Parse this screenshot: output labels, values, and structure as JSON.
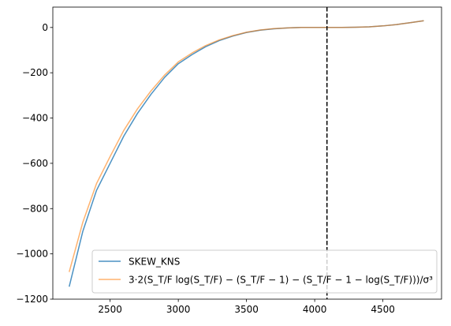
{
  "chart_data": {
    "type": "line",
    "title": "",
    "xlabel": "",
    "ylabel": "",
    "xlim": [
      2080,
      4930
    ],
    "ylim": [
      -1200,
      90
    ],
    "xticks": [
      2500,
      3000,
      3500,
      4000,
      4500
    ],
    "yticks": [
      0,
      -200,
      -400,
      -600,
      -800,
      -1000,
      -1200
    ],
    "grid": false,
    "legend_placement": "lower-right",
    "vline": {
      "x": 4090,
      "style": "dashed",
      "color": "#000000"
    },
    "series": [
      {
        "name": "SKEW_KNS",
        "color": "#1f77b4",
        "opacity": 0.8,
        "x": [
          2200,
          2300,
          2400,
          2500,
          2600,
          2700,
          2800,
          2900,
          3000,
          3100,
          3200,
          3300,
          3400,
          3500,
          3600,
          3700,
          3800,
          3900,
          4000,
          4100,
          4200,
          4300,
          4400,
          4500,
          4600,
          4700,
          4800
        ],
        "y": [
          -1145,
          -900,
          -720,
          -600,
          -480,
          -380,
          -295,
          -220,
          -160,
          -120,
          -85,
          -58,
          -38,
          -22,
          -12,
          -6,
          -2,
          0,
          0,
          0,
          0,
          1,
          3,
          7,
          13,
          21,
          30
        ]
      },
      {
        "name": "3·2(S_T/F log(S_T/F) − (S_T/F − 1) − (S_T/F − 1 − log(S_T/F)))/σ³",
        "color": "#ff7f0e",
        "opacity": 0.6,
        "x": [
          2200,
          2300,
          2400,
          2500,
          2600,
          2700,
          2800,
          2900,
          3000,
          3100,
          3200,
          3300,
          3400,
          3500,
          3600,
          3700,
          3800,
          3900,
          4000,
          4100,
          4200,
          4300,
          4400,
          4500,
          4600,
          4700,
          4800
        ],
        "y": [
          -1080,
          -860,
          -690,
          -570,
          -455,
          -360,
          -280,
          -210,
          -152,
          -113,
          -80,
          -55,
          -36,
          -21,
          -11,
          -5,
          -2,
          0,
          0,
          0,
          0,
          1,
          3,
          7,
          13,
          21,
          30
        ]
      }
    ]
  }
}
